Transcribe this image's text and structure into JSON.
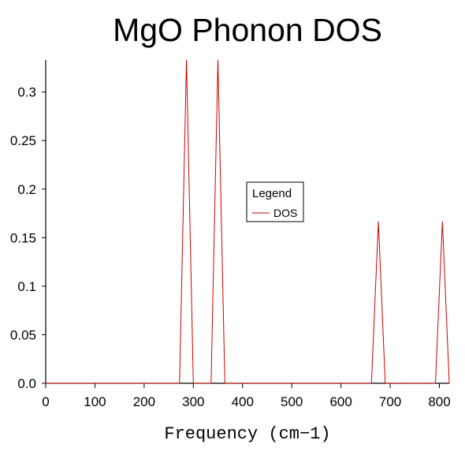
{
  "chart_data": {
    "type": "line",
    "title": "MgO Phonon DOS",
    "xlabel": "Frequency (cm−1)",
    "ylabel": "",
    "xlim": [
      0,
      820
    ],
    "ylim": [
      0,
      0.333
    ],
    "x_ticks": [
      0,
      100,
      200,
      300,
      400,
      500,
      600,
      700,
      800
    ],
    "x_tick_labels": [
      "0",
      "100",
      "200",
      "300",
      "400",
      "500",
      "600",
      "700",
      "800"
    ],
    "y_ticks": [
      0,
      0.05,
      0.1,
      0.15,
      0.2,
      0.25,
      0.3
    ],
    "y_tick_labels": [
      "0.0",
      "0.05",
      "0.1",
      "0.15",
      "0.2",
      "0.25",
      "0.3"
    ],
    "grid": false,
    "legend": {
      "title": "Legend",
      "placement": "center",
      "entries": [
        "DOS"
      ]
    },
    "series": [
      {
        "name": "DOS",
        "color": "#cc0000",
        "x": [
          0,
          272,
          286,
          300,
          336,
          350,
          364,
          662,
          676,
          690,
          792,
          806,
          820
        ],
        "y": [
          0,
          0,
          0.3333,
          0,
          0,
          0.3333,
          0,
          0,
          0.1667,
          0,
          0,
          0.1667,
          0
        ]
      }
    ]
  }
}
